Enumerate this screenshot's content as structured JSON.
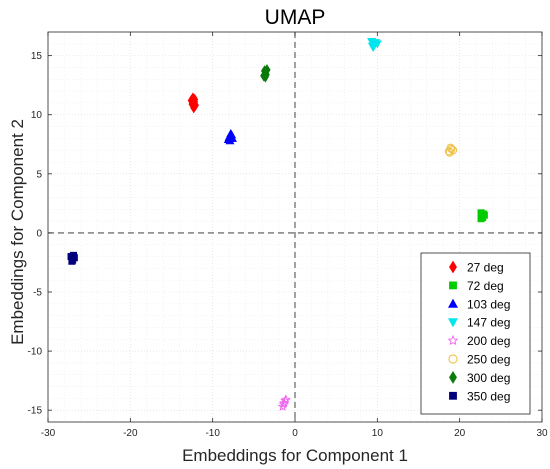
{
  "chart_data": {
    "type": "scatter",
    "title": "UMAP",
    "xlabel": "Embeddings for Component 1",
    "ylabel": "Embeddings for Component 2",
    "xlim": [
      -30,
      30
    ],
    "ylim": [
      -16,
      17
    ],
    "x_ticks": [
      -30,
      -20,
      -10,
      0,
      10,
      20,
      30
    ],
    "y_ticks": [
      -15,
      -10,
      -5,
      0,
      5,
      10,
      15
    ],
    "grid": true,
    "reference_lines": {
      "x": 0,
      "y": 0,
      "style": "dashed"
    },
    "legend_position": "bottom-right",
    "series": [
      {
        "name": "27 deg",
        "marker": "diamond",
        "color": "#ff0000",
        "points": [
          [
            -12.4,
            11.4
          ],
          [
            -12.2,
            11.1
          ],
          [
            -12.5,
            10.9
          ],
          [
            -12.3,
            10.6
          ],
          [
            -12.1,
            10.8
          ],
          [
            -12.6,
            11.2
          ],
          [
            -12.2,
            11.3
          ]
        ]
      },
      {
        "name": "72 deg",
        "marker": "square",
        "color": "#00cc00",
        "points": [
          [
            22.6,
            1.7
          ],
          [
            22.8,
            1.3
          ],
          [
            22.9,
            1.6
          ],
          [
            22.7,
            1.4
          ],
          [
            23.0,
            1.5
          ],
          [
            22.6,
            1.2
          ]
        ]
      },
      {
        "name": "103 deg",
        "marker": "triangle-up",
        "color": "#0000ff",
        "points": [
          [
            -7.8,
            8.4
          ],
          [
            -8.0,
            8.1
          ],
          [
            -7.6,
            8.0
          ],
          [
            -7.9,
            7.8
          ],
          [
            -7.7,
            8.3
          ],
          [
            -8.1,
            7.9
          ]
        ]
      },
      {
        "name": "147 deg",
        "marker": "triangle-down",
        "color": "#00e5ee",
        "points": [
          [
            9.3,
            16.2
          ],
          [
            9.6,
            15.9
          ],
          [
            9.8,
            16.1
          ],
          [
            9.5,
            15.7
          ],
          [
            10.0,
            16.0
          ],
          [
            9.4,
            15.8
          ]
        ]
      },
      {
        "name": "200 deg",
        "marker": "star",
        "color": "#ee66ee",
        "points": [
          [
            -1.5,
            -14.7
          ],
          [
            -1.3,
            -14.4
          ],
          [
            -1.1,
            -14.1
          ],
          [
            -1.4,
            -14.5
          ],
          [
            -1.2,
            -14.2
          ]
        ]
      },
      {
        "name": "250 deg",
        "marker": "circle",
        "color": "#f0c24a",
        "points": [
          [
            18.7,
            6.9
          ],
          [
            19.0,
            7.1
          ],
          [
            18.8,
            6.8
          ],
          [
            19.2,
            7.0
          ],
          [
            18.9,
            7.2
          ]
        ]
      },
      {
        "name": "300 deg",
        "marker": "diamond",
        "color": "#0a7a0a",
        "points": [
          [
            -3.7,
            13.7
          ],
          [
            -3.5,
            13.4
          ],
          [
            -3.8,
            13.3
          ],
          [
            -3.6,
            13.6
          ],
          [
            -3.4,
            13.8
          ],
          [
            -3.6,
            13.2
          ]
        ]
      },
      {
        "name": "350 deg",
        "marker": "square",
        "color": "#00007a",
        "points": [
          [
            -27.2,
            -2.0
          ],
          [
            -27.0,
            -2.3
          ],
          [
            -26.8,
            -2.1
          ],
          [
            -27.1,
            -2.4
          ],
          [
            -26.9,
            -1.9
          ]
        ]
      }
    ]
  }
}
